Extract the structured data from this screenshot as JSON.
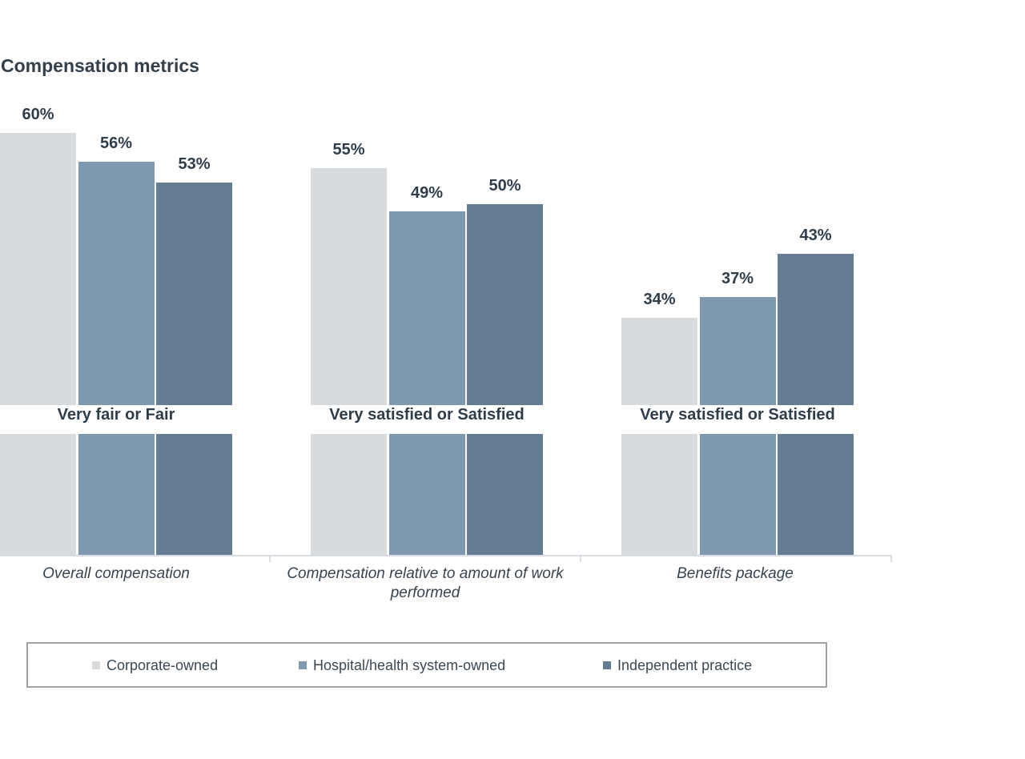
{
  "chart_data": {
    "type": "bar",
    "title": "Compensation metrics",
    "value_suffix": "%",
    "legend_position": "bottom",
    "grid": false,
    "axis_note": "no y-axis shown; bars labeled directly; bottom axis line with ticks between category groups",
    "categories": [
      "Overall compensation",
      "Compensation relative to amount of work performed",
      "Benefits package"
    ],
    "group_captions": [
      "Very fair or Fair",
      "Very satisfied or Satisfied",
      "Very satisfied or Satisfied"
    ],
    "series": [
      {
        "name": "Corporate-owned",
        "color": "#d7dbdd",
        "values": [
          60,
          55,
          34
        ]
      },
      {
        "name": "Hospital/health system-owned",
        "color": "#7f9aaf",
        "values": [
          56,
          49,
          37
        ]
      },
      {
        "name": "Independent practice",
        "color": "#647d92",
        "values": [
          53,
          50,
          43
        ]
      }
    ],
    "partial_second_row_visible": true
  },
  "colors": {
    "text_dark": "#2f3d4a",
    "axis": "#d9dde3",
    "legend_border": "#a1a1a1"
  }
}
